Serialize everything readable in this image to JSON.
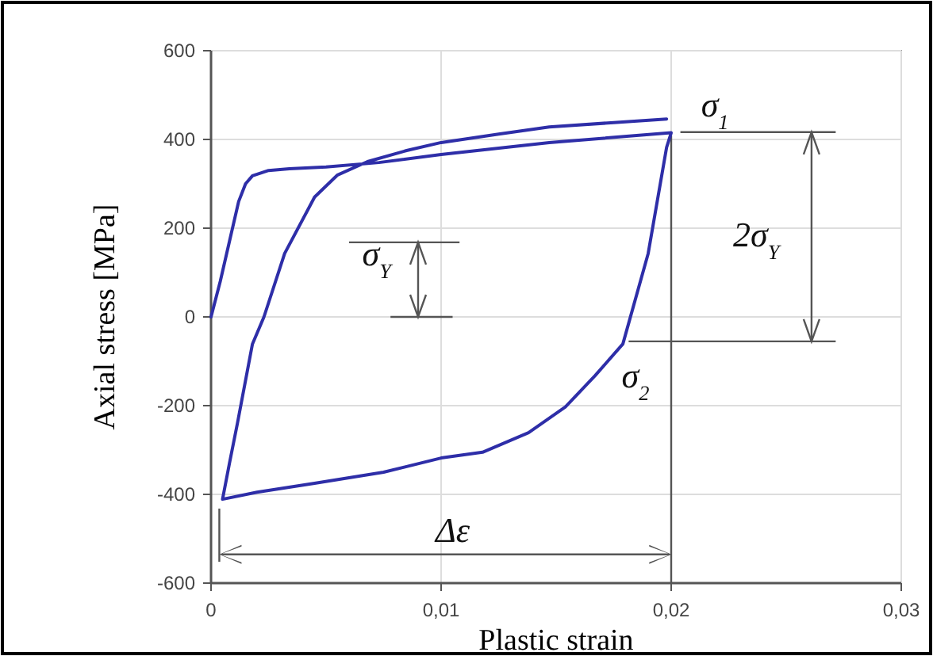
{
  "chart_data": {
    "type": "line",
    "xlabel": "Plastic strain",
    "ylabel": "Axial stress [MPa]",
    "xlim": [
      0,
      0.03
    ],
    "ylim": [
      -600,
      600
    ],
    "xticks": [
      {
        "value": 0,
        "label": "0"
      },
      {
        "value": 0.01,
        "label": "0,01"
      },
      {
        "value": 0.02,
        "label": "0,02"
      },
      {
        "value": 0.03,
        "label": "0,03"
      }
    ],
    "yticks": [
      -600,
      -400,
      -200,
      0,
      200,
      400,
      600
    ],
    "grid": true,
    "marker": "none",
    "line_style": "solid",
    "series": [
      {
        "color": "#2e2ea8",
        "x": [
          0,
          0.0004,
          0.0008,
          0.0012,
          0.0015,
          0.0018,
          0.0025,
          0.0034,
          0.005,
          0.0073,
          0.01,
          0.0147,
          0.02,
          0.0198,
          0.019,
          0.0179,
          0.0167,
          0.0154,
          0.0138,
          0.0118,
          0.01,
          0.0075,
          0.0045,
          0.002,
          0.0005,
          0.0008,
          0.00115,
          0.0018,
          0.0023,
          0.0032,
          0.0045,
          0.0055,
          0.0068,
          0.0085,
          0.01,
          0.0125,
          0.0147,
          0.0175,
          0.0198
        ],
        "values": [
          0,
          80,
          170,
          260,
          300,
          318,
          330,
          334,
          338,
          348,
          366,
          393,
          415,
          382,
          143,
          -61,
          -132,
          -203,
          -261,
          -305,
          -318,
          -350,
          -375,
          -395,
          -411,
          -330,
          -239,
          -61,
          0,
          143,
          270,
          320,
          350,
          375,
          393,
          412,
          428,
          438,
          446
        ]
      }
    ],
    "ref_lines": [
      {
        "axis": "x",
        "value": 0.02
      }
    ],
    "annotations": [
      "σ$_{1}$",
      "σ$_{2}$",
      "σ$_{Y}$",
      "2σ$_{Y}$",
      "Δε"
    ]
  }
}
